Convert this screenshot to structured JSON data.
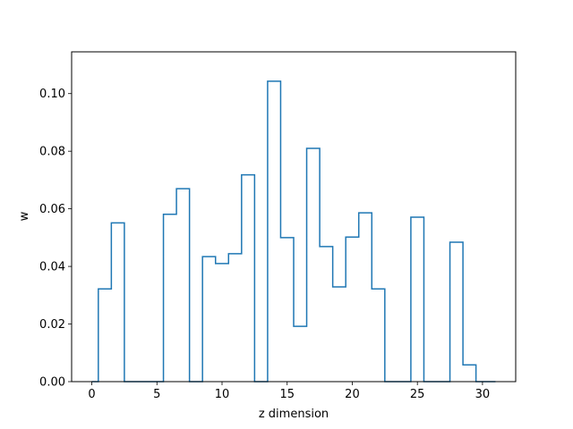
{
  "chart_data": {
    "type": "step",
    "title": "",
    "xlabel": "z dimension",
    "ylabel": "w",
    "xlim": [
      -1.55,
      32.55
    ],
    "ylim": [
      0,
      0.1145
    ],
    "grid": false,
    "legend": "none",
    "color": "#1f77b4",
    "x_ticks": [
      0,
      5,
      10,
      15,
      20,
      25,
      30
    ],
    "x_tick_labels": [
      "0",
      "5",
      "10",
      "15",
      "20",
      "25",
      "30"
    ],
    "y_ticks": [
      0.0,
      0.02,
      0.04,
      0.06,
      0.08,
      0.1
    ],
    "y_tick_labels": [
      "0.00",
      "0.02",
      "0.04",
      "0.06",
      "0.08",
      "0.10"
    ],
    "bin_edges": [
      0.0,
      0.5,
      1.5,
      2.5,
      3.5,
      4.5,
      5.5,
      6.5,
      7.5,
      8.5,
      9.5,
      10.5,
      11.5,
      12.5,
      13.5,
      14.5,
      15.5,
      16.5,
      17.5,
      18.5,
      19.5,
      20.5,
      21.5,
      22.5,
      23.5,
      24.5,
      25.5,
      26.5,
      27.5,
      28.5,
      29.5,
      31.0
    ],
    "values": [
      0.0,
      0.0322,
      0.0551,
      0.0,
      0.0,
      0.0,
      0.0581,
      0.067,
      0.0,
      0.0434,
      0.041,
      0.0444,
      0.0718,
      0.0,
      0.1043,
      0.05,
      0.0192,
      0.081,
      0.0469,
      0.0329,
      0.0502,
      0.0586,
      0.0322,
      0.0,
      0.0,
      0.0571,
      0.0,
      0.0,
      0.0484,
      0.0058,
      0.0
    ]
  }
}
